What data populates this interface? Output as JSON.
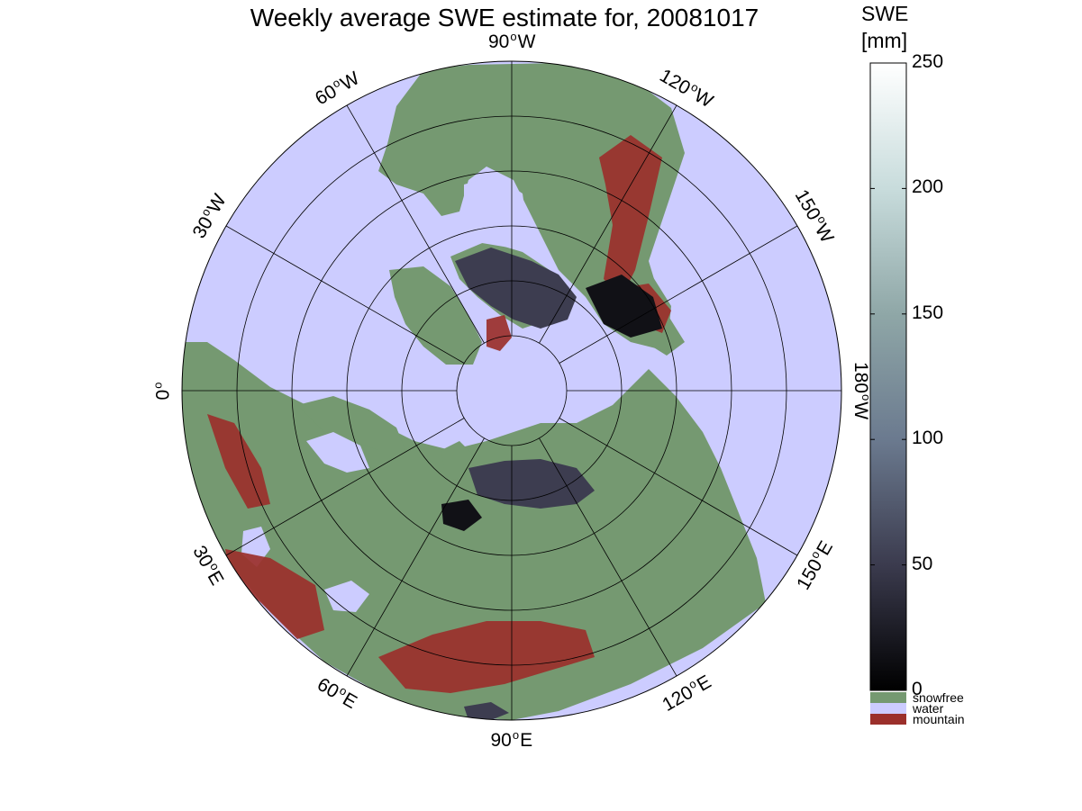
{
  "map": {
    "title": "Weekly average SWE estimate for, 20081017",
    "projection": "north polar stereographic",
    "longitude_labels": [
      {
        "value": "90",
        "hemi": "W"
      },
      {
        "value": "120",
        "hemi": "W"
      },
      {
        "value": "150",
        "hemi": "W"
      },
      {
        "value": "180",
        "hemi": "W"
      },
      {
        "value": "150",
        "hemi": "E"
      },
      {
        "value": "120",
        "hemi": "E"
      },
      {
        "value": "90",
        "hemi": "E"
      },
      {
        "value": "60",
        "hemi": "E"
      },
      {
        "value": "30",
        "hemi": "E"
      },
      {
        "value": "0",
        "hemi": ""
      },
      {
        "value": "30",
        "hemi": "W"
      },
      {
        "value": "60",
        "hemi": "W"
      }
    ],
    "degree_symbol": "o",
    "colors": {
      "water": "#ccccff",
      "snowfree": "#759971",
      "mountain": "#9b302b",
      "snow_low": "#111116",
      "snow_mid": "#3d3d50",
      "coastline": "#000000",
      "grid": "#000000"
    }
  },
  "colorbar": {
    "title_line1": "SWE",
    "title_line2": "[mm]",
    "min": 0,
    "max": 250,
    "ticks": [
      "0",
      "50",
      "100",
      "150",
      "200",
      "250"
    ],
    "stops": [
      "#000000",
      "#3b3b4e",
      "#6b7a8f",
      "#8fa7a7",
      "#c8dcdc",
      "#ffffff"
    ],
    "categories": [
      {
        "label": "snowfree",
        "color": "#759971"
      },
      {
        "label": "water",
        "color": "#ccccff"
      },
      {
        "label": "mountain",
        "color": "#9b302b"
      }
    ]
  }
}
